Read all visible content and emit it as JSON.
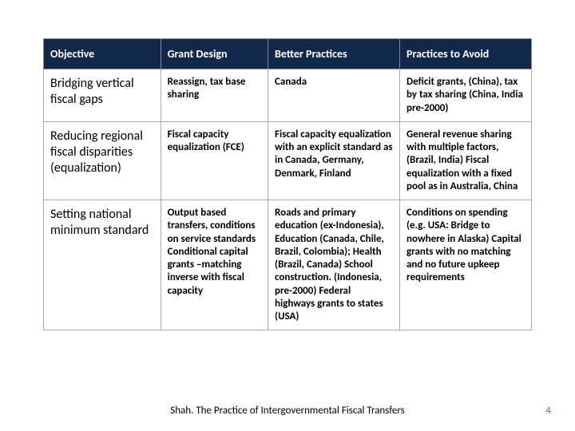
{
  "table": {
    "headers": [
      "Objective",
      "Grant Design",
      "Better Practices",
      "Practices to Avoid"
    ],
    "rows": [
      {
        "objective": "Bridging vertical fiscal gaps",
        "design": "Reassign, tax base sharing",
        "better": "Canada",
        "avoid": "Deficit grants, (China), tax by tax sharing (China, India pre-2000)"
      },
      {
        "objective": "Reducing regional fiscal disparities (equalization)",
        "design": "Fiscal capacity equalization (FCE)",
        "better": "Fiscal capacity equalization with an explicit standard as in Canada, Germany, Denmark, Finland",
        "avoid": "General revenue sharing with multiple factors, (Brazil, India) Fiscal equalization with a fixed pool as in Australia, China"
      },
      {
        "objective": "Setting national minimum standard",
        "design": "Output based transfers, conditions on service standards Conditional capital grants –matching inverse with fiscal capacity",
        "better": "Roads and primary education (ex-Indonesia), Education (Canada, Chile, Brazil, Colombia); Health (Brazil, Canada) School construction. (Indonesia, pre-2000) Federal highways grants to states (USA)",
        "avoid": "Conditions on spending (e.g. USA: Bridge to nowhere in Alaska) Capital grants with no matching and no future upkeep requirements"
      }
    ]
  },
  "footer": "Shah. The Practice of Intergovernmental Fiscal Transfers",
  "pagenum": "4"
}
